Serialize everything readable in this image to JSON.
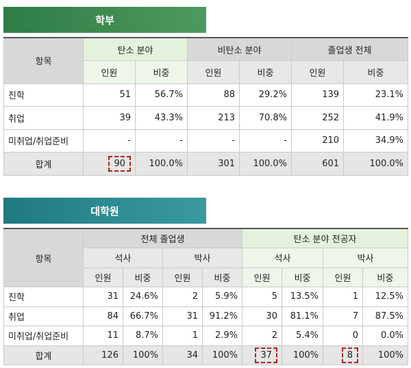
{
  "undergrad": {
    "title": "학부",
    "item_header": "항목",
    "groups": [
      "탄소 분야",
      "비탄소 분야",
      "졸업생 전체"
    ],
    "sub": [
      "인원",
      "비중"
    ],
    "rows": [
      {
        "label": "진학",
        "cells": [
          "51",
          "56.7%",
          "88",
          "29.2%",
          "139",
          "23.1%"
        ]
      },
      {
        "label": "취업",
        "cells": [
          "39",
          "43.3%",
          "213",
          "70.8%",
          "252",
          "41.9%"
        ]
      },
      {
        "label": "미취업/취업준비",
        "cells": [
          "-",
          "-",
          "-",
          "-",
          "210",
          "34.9%"
        ]
      }
    ],
    "total": {
      "label": "합계",
      "cells": [
        "90",
        "100.0%",
        "301",
        "100.0%",
        "601",
        "100.0%"
      ]
    }
  },
  "grad": {
    "title": "대학원",
    "item_header": "항목",
    "groups": [
      "전체 졸업생",
      "탄소 분야 전공자"
    ],
    "degrees": [
      "석사",
      "박사",
      "석사",
      "박사"
    ],
    "sub": [
      "인원",
      "비중"
    ],
    "rows": [
      {
        "label": "진학",
        "cells": [
          "31",
          "24.6%",
          "2",
          "5.9%",
          "5",
          "13.5%",
          "1",
          "12.5%"
        ]
      },
      {
        "label": "취업",
        "cells": [
          "84",
          "66.7%",
          "31",
          "91.2%",
          "30",
          "81.1%",
          "7",
          "87.5%"
        ]
      },
      {
        "label": "미취업/취업준비",
        "cells": [
          "11",
          "8.7%",
          "1",
          "2.9%",
          "2",
          "5.4%",
          "0",
          "0.0%"
        ]
      }
    ],
    "total": {
      "label": "합계",
      "cells": [
        "126",
        "100%",
        "34",
        "100%",
        "37",
        "100%",
        "8",
        "100%"
      ]
    }
  },
  "colors": {
    "undergrad_banner": "#3a8a50",
    "grad_banner": "#2a8a90",
    "highlight_dash": "#b02020"
  }
}
